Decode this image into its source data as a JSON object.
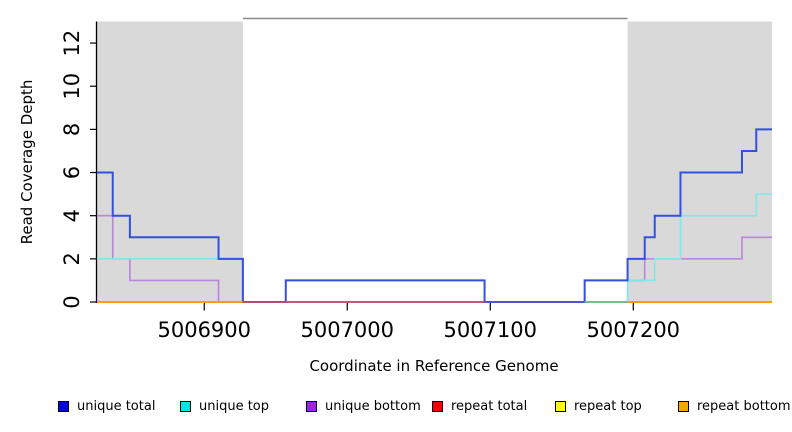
{
  "chart_data": {
    "type": "line",
    "subtype": "step-coverage",
    "title": "",
    "xlabel": "Coordinate in Reference Genome",
    "ylabel": "Read Coverage Depth",
    "xlim": [
      5006825,
      5007297
    ],
    "ylim": [
      0,
      13
    ],
    "x_ticks": [
      5006900,
      5007000,
      5007100,
      5007200
    ],
    "y_ticks": [
      0,
      2,
      4,
      6,
      8,
      10,
      12
    ],
    "grid": false,
    "legend_position": "bottom",
    "colors": {
      "background": "#ffffff",
      "repeat_region_fill": "#d9d9d9",
      "axis": "#000000",
      "plot_top_border": "#898989"
    },
    "repeat_regions": [
      [
        5006825,
        5006927
      ],
      [
        5007196,
        5007297
      ]
    ],
    "series": [
      {
        "name": "unique total",
        "legend_color": "#0000ee",
        "line_color": "#3350de",
        "width": 2,
        "points": [
          [
            5006825,
            6
          ],
          [
            5006836,
            4
          ],
          [
            5006848,
            3
          ],
          [
            5006910,
            2
          ],
          [
            5006927,
            0
          ],
          [
            5006957,
            1
          ],
          [
            5007096,
            0
          ],
          [
            5007166,
            1
          ],
          [
            5007196,
            2
          ],
          [
            5007208,
            3
          ],
          [
            5007215,
            4
          ],
          [
            5007233,
            6
          ],
          [
            5007276,
            7
          ],
          [
            5007286,
            8
          ]
        ]
      },
      {
        "name": "unique top",
        "legend_color": "#00e5e5",
        "line_color": "#7de9e9",
        "width": 1.6,
        "points": [
          [
            5006825,
            2
          ],
          [
            5006927,
            0
          ],
          [
            5007196,
            1
          ],
          [
            5007215,
            2
          ],
          [
            5007233,
            4
          ],
          [
            5007286,
            5
          ]
        ]
      },
      {
        "name": "unique bottom",
        "legend_color": "#a020f0",
        "line_color": "#b886dd",
        "width": 1.6,
        "points": [
          [
            5006825,
            4
          ],
          [
            5006836,
            2
          ],
          [
            5006848,
            1
          ],
          [
            5006910,
            0
          ],
          [
            5007166,
            1
          ],
          [
            5007208,
            2
          ],
          [
            5007276,
            3
          ]
        ]
      },
      {
        "name": "repeat total",
        "legend_color": "#ee0000",
        "line_color": "#c94a6b",
        "width": 1.6,
        "points": [
          [
            5006825,
            0
          ]
        ]
      },
      {
        "name": "repeat top",
        "legend_color": "#ffff00",
        "line_color": "#eeee33",
        "width": 1.6,
        "points": [
          [
            5006825,
            0
          ]
        ]
      },
      {
        "name": "repeat bottom",
        "legend_color": "#ffa500",
        "line_color": "#ff9d00",
        "width": 2,
        "points": [
          [
            5006825,
            0
          ]
        ]
      }
    ],
    "baseline_segments": [
      {
        "from": 5006825,
        "to": 5006927,
        "color": "#ff9d00"
      },
      {
        "from": 5006927,
        "to": 5007096,
        "color": "#c94a6b"
      },
      {
        "from": 5007096,
        "to": 5007166,
        "color": "#5a4fd8"
      },
      {
        "from": 5007166,
        "to": 5007196,
        "color": "#6dbb8d"
      },
      {
        "from": 5007196,
        "to": 5007297,
        "color": "#ff9d00"
      }
    ]
  }
}
